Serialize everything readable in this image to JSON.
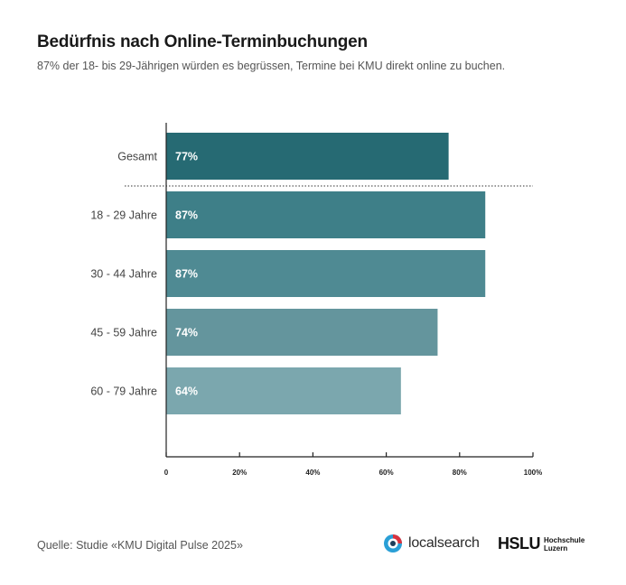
{
  "header": {
    "title": "Bedürfnis nach Online-Terminbuchungen",
    "subtitle": "87% der 18- bis 29-Jährigen würden es begrüssen, Termine bei KMU direkt online zu buchen."
  },
  "chart_data": {
    "type": "bar",
    "orientation": "horizontal",
    "categories": [
      "Gesamt",
      "18 - 29 Jahre",
      "30 - 44 Jahre",
      "45 - 59 Jahre",
      "60 - 79 Jahre"
    ],
    "values": [
      77,
      87,
      87,
      74,
      64
    ],
    "value_labels": [
      "77%",
      "87%",
      "87%",
      "74%",
      "64%"
    ],
    "bar_colors": [
      "#266a73",
      "#3e7f88",
      "#4f8a93",
      "#64959d",
      "#7ba7ae"
    ],
    "xlim": [
      0,
      100
    ],
    "x_ticks": [
      0,
      20,
      40,
      60,
      80,
      100
    ],
    "x_tick_labels": [
      "0",
      "20%",
      "40%",
      "60%",
      "80%",
      "100%"
    ],
    "separator_after_category": "Gesamt",
    "grid": false
  },
  "footer": {
    "source": "Quelle: Studie «KMU Digital Pulse 2025»",
    "logo_localsearch": "localsearch",
    "logo_hslu": "HSLU",
    "logo_hslu_sub1": "Hochschule",
    "logo_hslu_sub2": "Luzern"
  },
  "colors": {
    "icon_red": "#d9333f",
    "icon_blue": "#2a9fd6",
    "axis": "#222222"
  }
}
